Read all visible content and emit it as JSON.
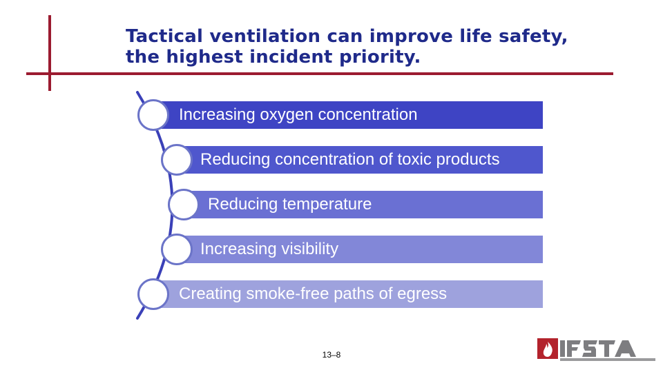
{
  "slide": {
    "title": "Tactical ventilation can improve life safety, the highest incident priority.",
    "items": [
      {
        "label": "Increasing oxygen concentration",
        "color": "#3e44c4"
      },
      {
        "label": "Reducing concentration of toxic products",
        "color": "#4f57cd"
      },
      {
        "label": "Reducing temperature",
        "color": "#6a70d3"
      },
      {
        "label": "Increasing visibility",
        "color": "#8287d8"
      },
      {
        "label": "Creating smoke-free paths of egress",
        "color": "#9ea2dd"
      }
    ],
    "page_number": "13–8"
  },
  "logo": {
    "name": "IFSTA",
    "icon": "flame-house-icon"
  },
  "colors": {
    "accent_line": "#9b1b30",
    "title": "#1f2a8a"
  }
}
